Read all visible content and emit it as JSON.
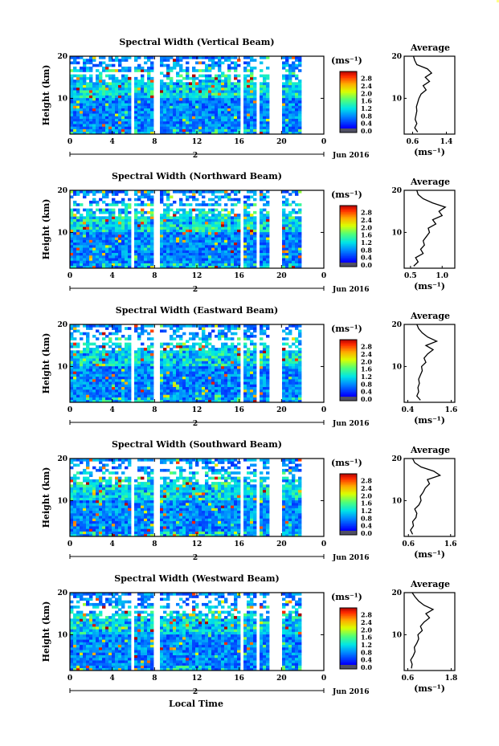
{
  "figure": {
    "xlabel": "Local Time",
    "ylabel": "Height (km)",
    "date_label": "Jun 2016",
    "day_label": "2",
    "cbar_unit": "(ms⁻¹)",
    "average_title": "Average",
    "average_xlabel": "(ms⁻¹)"
  },
  "chart_data": [
    {
      "type": "heatmap",
      "title": "Spectral Width (Vertical Beam)",
      "xlabel": "Local Time",
      "ylabel": "Height (km)",
      "x_ticks": [
        "0",
        "4",
        "8",
        "12",
        "16",
        "20",
        "0"
      ],
      "y_ticks": [
        "10",
        "20"
      ],
      "xlim": [
        0,
        24
      ],
      "ylim": [
        1.5,
        20
      ],
      "data_gaps_hours": [
        [
          5.9,
          6.1
        ],
        [
          7.9,
          8.4
        ],
        [
          16.1,
          16.4
        ],
        [
          17.7,
          18.0
        ],
        [
          18.9,
          20.0
        ],
        [
          22.0,
          24.0
        ]
      ],
      "colorbar": {
        "label": "(ms⁻¹)",
        "ticks": [
          "0.0",
          "0.4",
          "0.8",
          "1.2",
          "1.6",
          "2.0",
          "2.4",
          "2.8"
        ],
        "range": [
          0,
          3.0
        ]
      },
      "average_profile": {
        "title": "Average",
        "xlabel": "(ms⁻¹)",
        "x_ticks": [
          "0.6",
          "1.4"
        ],
        "xlim": [
          0.4,
          1.6
        ],
        "y_ticks": [
          "10",
          "20"
        ],
        "height_km": [
          2,
          3,
          4,
          5,
          6,
          7,
          8,
          9,
          10,
          11,
          12,
          13,
          14,
          15,
          16,
          17,
          18,
          19,
          20
        ],
        "values": [
          0.72,
          0.65,
          0.7,
          0.66,
          0.68,
          0.7,
          0.69,
          0.72,
          0.75,
          0.8,
          0.92,
          0.85,
          1.0,
          0.9,
          1.05,
          0.95,
          0.7,
          0.65,
          0.62
        ]
      }
    },
    {
      "type": "heatmap",
      "title": "Spectral Width (Northward Beam)",
      "xlabel": "Local Time",
      "ylabel": "Height (km)",
      "x_ticks": [
        "0",
        "4",
        "8",
        "12",
        "16",
        "20",
        "0"
      ],
      "y_ticks": [
        "10",
        "20"
      ],
      "xlim": [
        0,
        24
      ],
      "ylim": [
        1.5,
        20
      ],
      "data_gaps_hours": [
        [
          5.9,
          6.1
        ],
        [
          7.9,
          8.4
        ],
        [
          16.1,
          16.4
        ],
        [
          17.7,
          18.0
        ],
        [
          18.9,
          20.0
        ],
        [
          22.0,
          24.0
        ]
      ],
      "colorbar": {
        "label": "(ms⁻¹)",
        "ticks": [
          "0.0",
          "0.4",
          "0.8",
          "1.2",
          "1.6",
          "2.0",
          "2.4",
          "2.8"
        ],
        "range": [
          0,
          3.0
        ]
      },
      "average_profile": {
        "title": "Average",
        "xlabel": "(ms⁻¹)",
        "x_ticks": [
          "0.5",
          "1.0"
        ],
        "xlim": [
          0.4,
          1.2
        ],
        "y_ticks": [
          "10",
          "20"
        ],
        "height_km": [
          2,
          3,
          4,
          5,
          6,
          7,
          8,
          9,
          10,
          11,
          12,
          13,
          14,
          15,
          16,
          17,
          18,
          19,
          20
        ],
        "values": [
          0.55,
          0.62,
          0.58,
          0.7,
          0.66,
          0.72,
          0.7,
          0.75,
          0.8,
          0.78,
          0.9,
          0.85,
          1.0,
          0.95,
          1.05,
          0.85,
          0.7,
          0.62,
          0.6
        ]
      }
    },
    {
      "type": "heatmap",
      "title": "Spectral Width (Eastward Beam)",
      "xlabel": "Local Time",
      "ylabel": "Height (km)",
      "x_ticks": [
        "0",
        "4",
        "8",
        "12",
        "16",
        "20",
        "0"
      ],
      "y_ticks": [
        "10",
        "20"
      ],
      "xlim": [
        0,
        24
      ],
      "ylim": [
        1.5,
        20
      ],
      "data_gaps_hours": [
        [
          5.9,
          6.1
        ],
        [
          7.9,
          8.4
        ],
        [
          16.1,
          16.4
        ],
        [
          17.7,
          18.0
        ],
        [
          18.9,
          20.0
        ],
        [
          22.0,
          24.0
        ]
      ],
      "colorbar": {
        "label": "(ms⁻¹)",
        "ticks": [
          "0.0",
          "0.4",
          "0.8",
          "1.2",
          "1.6",
          "2.0",
          "2.4",
          "2.8"
        ],
        "range": [
          0,
          3.0
        ]
      },
      "average_profile": {
        "title": "Average",
        "xlabel": "(ms⁻¹)",
        "x_ticks": [
          "0.4",
          "1.6"
        ],
        "xlim": [
          0.3,
          1.7
        ],
        "y_ticks": [
          "10",
          "20"
        ],
        "height_km": [
          2,
          3,
          4,
          5,
          6,
          7,
          8,
          9,
          10,
          11,
          12,
          13,
          14,
          15,
          16,
          17,
          18,
          19,
          20
        ],
        "values": [
          0.75,
          0.65,
          0.7,
          0.68,
          0.72,
          0.7,
          0.75,
          0.8,
          0.78,
          0.9,
          0.85,
          0.95,
          1.1,
          0.9,
          1.2,
          0.95,
          0.8,
          0.7,
          0.65
        ]
      }
    },
    {
      "type": "heatmap",
      "title": "Spectral Width (Southward Beam)",
      "xlabel": "Local Time",
      "ylabel": "Height (km)",
      "x_ticks": [
        "0",
        "4",
        "8",
        "12",
        "16",
        "20",
        "0"
      ],
      "y_ticks": [
        "10",
        "20"
      ],
      "xlim": [
        0,
        24
      ],
      "ylim": [
        1.5,
        20
      ],
      "data_gaps_hours": [
        [
          5.9,
          6.1
        ],
        [
          7.9,
          8.4
        ],
        [
          16.1,
          16.4
        ],
        [
          17.7,
          18.0
        ],
        [
          18.9,
          20.0
        ],
        [
          22.0,
          24.0
        ]
      ],
      "colorbar": {
        "label": "(ms⁻¹)",
        "ticks": [
          "0.0",
          "0.4",
          "0.8",
          "1.2",
          "1.6",
          "2.0",
          "2.4",
          "2.8"
        ],
        "range": [
          0,
          3.0
        ]
      },
      "average_profile": {
        "title": "Average",
        "xlabel": "(ms⁻¹)",
        "x_ticks": [
          "0.6",
          "1.6"
        ],
        "xlim": [
          0.5,
          1.7
        ],
        "y_ticks": [
          "10",
          "20"
        ],
        "height_km": [
          2,
          3,
          4,
          5,
          6,
          7,
          8,
          9,
          10,
          11,
          12,
          13,
          14,
          15,
          16,
          17,
          18,
          19,
          20
        ],
        "values": [
          0.7,
          0.65,
          0.72,
          0.7,
          0.78,
          0.8,
          0.75,
          0.85,
          0.9,
          0.88,
          0.95,
          1.0,
          1.1,
          1.05,
          1.35,
          1.2,
          0.9,
          0.75,
          0.7
        ]
      }
    },
    {
      "type": "heatmap",
      "title": "Spectral Width (Westward Beam)",
      "xlabel": "Local Time",
      "ylabel": "Height (km)",
      "x_ticks": [
        "0",
        "4",
        "8",
        "12",
        "16",
        "20",
        "0"
      ],
      "y_ticks": [
        "10",
        "20"
      ],
      "xlim": [
        0,
        24
      ],
      "ylim": [
        1.5,
        20
      ],
      "data_gaps_hours": [
        [
          5.9,
          6.1
        ],
        [
          7.9,
          8.4
        ],
        [
          16.1,
          16.4
        ],
        [
          17.7,
          18.0
        ],
        [
          18.9,
          20.0
        ],
        [
          22.0,
          24.0
        ]
      ],
      "colorbar": {
        "label": "(ms⁻¹)",
        "ticks": [
          "0.0",
          "0.4",
          "0.8",
          "1.2",
          "1.6",
          "2.0",
          "2.4",
          "2.8"
        ],
        "range": [
          0,
          3.0
        ]
      },
      "average_profile": {
        "title": "Average",
        "xlabel": "(ms⁻¹)",
        "x_ticks": [
          "0.6",
          "1.8"
        ],
        "xlim": [
          0.5,
          1.9
        ],
        "y_ticks": [
          "10",
          "20"
        ],
        "height_km": [
          2,
          3,
          4,
          5,
          6,
          7,
          8,
          9,
          10,
          11,
          12,
          13,
          14,
          15,
          16,
          17,
          18,
          19,
          20
        ],
        "values": [
          0.7,
          0.72,
          0.68,
          0.75,
          0.8,
          0.78,
          0.85,
          0.9,
          0.88,
          1.0,
          0.95,
          1.05,
          1.2,
          1.1,
          1.3,
          1.05,
          0.9,
          0.8,
          0.72
        ]
      }
    }
  ]
}
